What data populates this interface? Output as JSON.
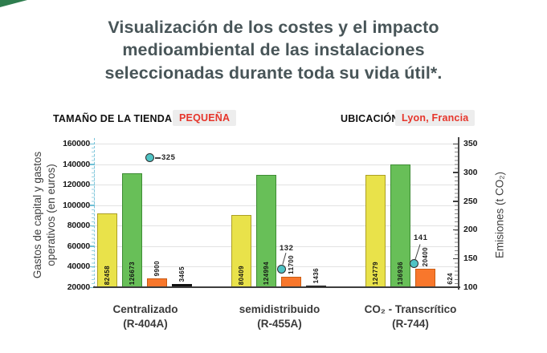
{
  "page": {
    "corner_accent_color": "#2e7d4e",
    "background": "#ffffff"
  },
  "header": {
    "title_lines": [
      "Visualización de los costes y el impacto",
      "medioambiental de las instalaciones",
      "seleccionadas durante toda su vida útil*."
    ],
    "title_color": "#485558"
  },
  "filters": {
    "store_size_label": "TAMAÑO DE LA TIENDA",
    "store_size_value": "PEQUEÑA",
    "location_label": "UBICACIÓN",
    "location_value": "Lyon, Francia",
    "value_color": "#e6352b",
    "value_bg": "#ededed"
  },
  "chart_data": {
    "type": "bar",
    "title": "",
    "categories": [
      "Centralizado (R-404A)",
      "semidistribuido (R-455A)",
      "CO₂ - Transcrítico (R-744)"
    ],
    "category_lines": [
      [
        "Centralizado",
        "(R-404A)"
      ],
      [
        "semidistribuido",
        "(R-455A)"
      ],
      [
        "CO₂ - Transcrítico",
        "(R-744)"
      ]
    ],
    "series": [
      {
        "name": "bar-yellow",
        "color": "#e9e24a",
        "border": "#ac9f24",
        "values": [
          82458,
          80409,
          124779
        ]
      },
      {
        "name": "bar-green",
        "color": "#68bf58",
        "border": "#3e8c34",
        "values": [
          126673,
          124994,
          136936
        ]
      },
      {
        "name": "bar-orange",
        "color": "#f8772c",
        "border": "#c95c13",
        "values": [
          9900,
          11700,
          20400
        ]
      },
      {
        "name": "bar-black",
        "color": "#111111",
        "border": "#111111",
        "values": [
          3465,
          1436,
          624
        ]
      }
    ],
    "emissions_series": {
      "marker": "circle",
      "color": "#4fc3c4",
      "values": [
        325,
        132,
        141
      ]
    },
    "left_axis": {
      "label_lines": [
        "Gastos de capital y gastos",
        "operativos (en euros)"
      ],
      "ticks": [
        160000,
        140000,
        120000,
        100000,
        80000,
        60000,
        40000,
        20000
      ],
      "min": 20000,
      "max": 160000,
      "bar_scale_max": 160000
    },
    "right_axis": {
      "label": "Emisiones (t CO₂)",
      "ticks": [
        350,
        300,
        250,
        200,
        150,
        100
      ],
      "min": 100,
      "max": 350
    },
    "grid": "horizontal",
    "legend": "none"
  }
}
